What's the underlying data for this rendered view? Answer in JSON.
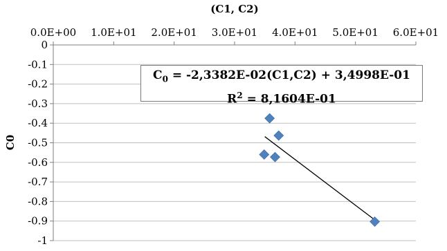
{
  "chart_data": {
    "type": "scatter",
    "xlabel": "(C1, C2)",
    "ylabel": "C0",
    "x_axis_position": "top",
    "xlim": [
      0,
      60
    ],
    "ylim": [
      -1,
      0
    ],
    "xticks": [
      0,
      10,
      20,
      30,
      40,
      50,
      60
    ],
    "xtick_labels": [
      "0.0E+00",
      "1.0E+01",
      "2.0E+01",
      "3.0E+01",
      "4.0E+01",
      "5.0E+01",
      "6.0E+01"
    ],
    "yticks": [
      0,
      -0.1,
      -0.2,
      -0.3,
      -0.4,
      -0.5,
      -0.6,
      -0.7,
      -0.8,
      -0.9,
      -1
    ],
    "ytick_labels": [
      "0",
      "-0.1",
      "-0.2",
      "-0.3",
      "-0.4",
      "-0.5",
      "-0.6",
      "-0.7",
      "-0.8",
      "-0.9",
      "-1"
    ],
    "grid": {
      "horizontal": true,
      "vertical": false
    },
    "marker": "diamond",
    "marker_color": "#4f81bd",
    "trendline_color": "#000000",
    "series": [
      {
        "x": [
          35.8,
          37.3,
          34.9,
          36.7,
          53.2
        ],
        "y": [
          -0.375,
          -0.463,
          -0.56,
          -0.573,
          -0.903
        ]
      }
    ],
    "trendline": {
      "slope": -0.023382,
      "intercept": 0.34998,
      "x_range": [
        35.0,
        53.2
      ]
    },
    "annotation": {
      "equation_lhs": "C",
      "equation_sub": "0",
      "equation_rhs": " = -2,3382E-02(C1,C2) + 3,4998E-01",
      "r2_lhs": "R",
      "r2_sup": "2",
      "r2_rhs": " = 8,1604E-01"
    }
  }
}
